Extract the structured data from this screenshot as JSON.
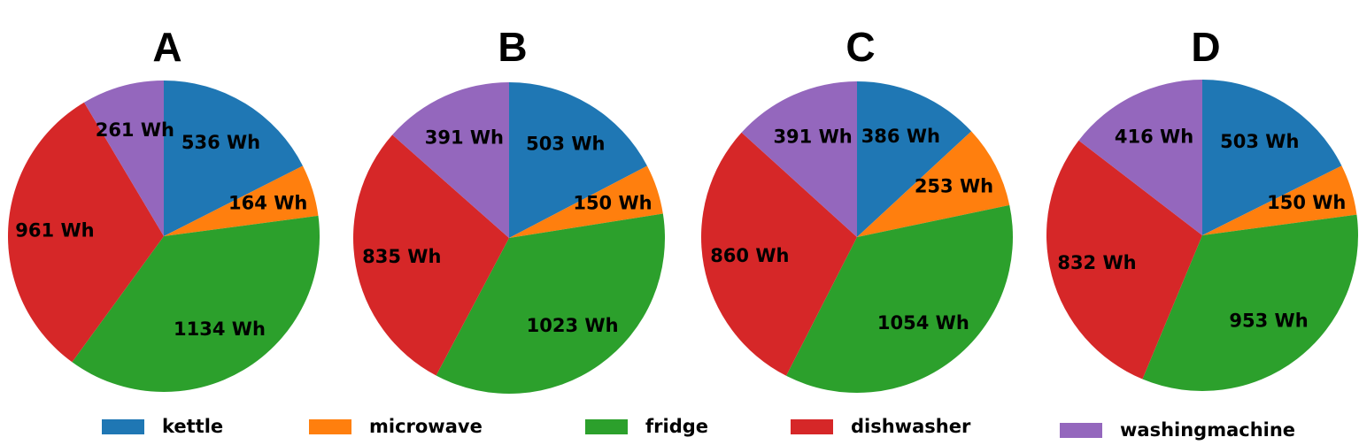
{
  "chart_data": [
    {
      "type": "pie",
      "title": "A",
      "categories": [
        "kettle",
        "microwave",
        "fridge",
        "dishwasher",
        "washingmachine"
      ],
      "values": [
        536,
        164,
        1134,
        961,
        261
      ],
      "value_labels": [
        "536 Wh",
        "164 Wh",
        "1134 Wh",
        "961 Wh",
        "261 Wh"
      ],
      "colors": [
        "#1f77b4",
        "#ff7f0e",
        "#2ca02c",
        "#d62728",
        "#9467bd"
      ]
    },
    {
      "type": "pie",
      "title": "B",
      "categories": [
        "kettle",
        "microwave",
        "fridge",
        "dishwasher",
        "washingmachine"
      ],
      "values": [
        503,
        150,
        1023,
        835,
        391
      ],
      "value_labels": [
        "503 Wh",
        "150 Wh",
        "1023 Wh",
        "835 Wh",
        "391 Wh"
      ],
      "colors": [
        "#1f77b4",
        "#ff7f0e",
        "#2ca02c",
        "#d62728",
        "#9467bd"
      ]
    },
    {
      "type": "pie",
      "title": "C",
      "categories": [
        "kettle",
        "microwave",
        "fridge",
        "dishwasher",
        "washingmachine"
      ],
      "values": [
        386,
        253,
        1054,
        860,
        391
      ],
      "value_labels": [
        "386 Wh",
        "253 Wh",
        "1054 Wh",
        "860 Wh",
        "391 Wh"
      ],
      "colors": [
        "#1f77b4",
        "#ff7f0e",
        "#2ca02c",
        "#d62728",
        "#9467bd"
      ]
    },
    {
      "type": "pie",
      "title": "D",
      "categories": [
        "kettle",
        "microwave",
        "fridge",
        "dishwasher",
        "washingmachine"
      ],
      "values": [
        503,
        150,
        953,
        832,
        416
      ],
      "value_labels": [
        "503 Wh",
        "150 Wh",
        "953 Wh",
        "832 Wh",
        "416 Wh"
      ],
      "colors": [
        "#1f77b4",
        "#ff7f0e",
        "#2ca02c",
        "#d62728",
        "#9467bd"
      ]
    }
  ]
}
